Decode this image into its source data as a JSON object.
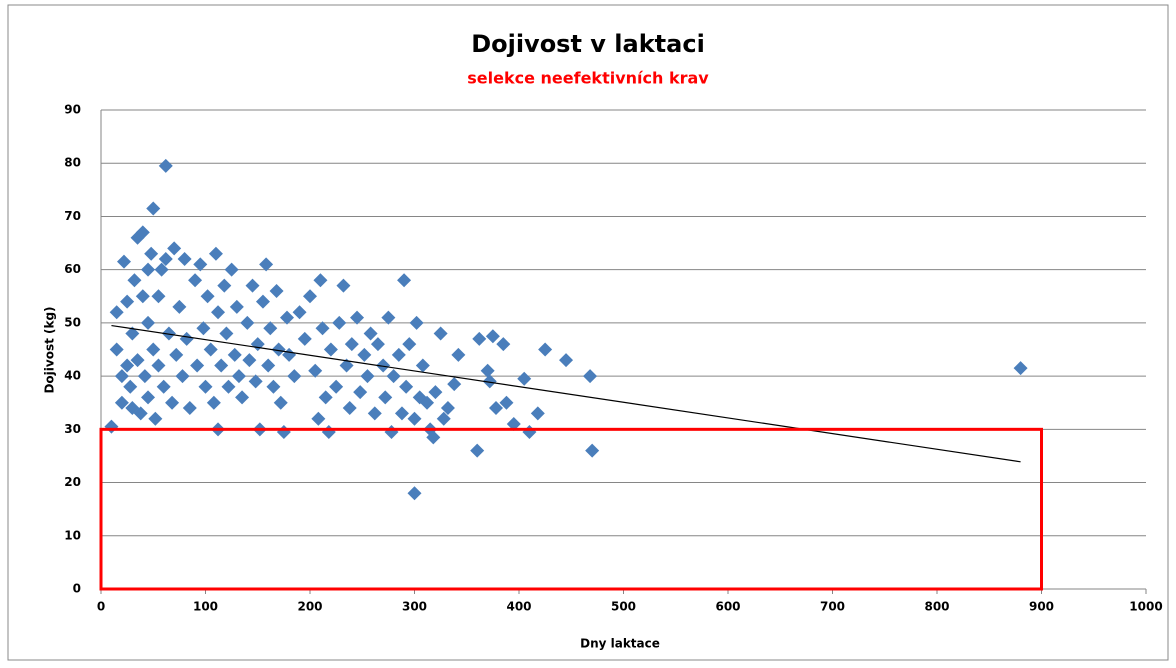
{
  "chart_data": {
    "type": "scatter",
    "title": "Dojivost v laktaci",
    "subtitle": "selekce neefektivních krav",
    "x_label": "Dny laktace",
    "y_label": "Dojivost (kg)",
    "color": "#4a7ebb",
    "x": [
      10,
      15,
      15,
      20,
      20,
      22,
      25,
      25,
      28,
      30,
      30,
      32,
      35,
      35,
      38,
      40,
      40,
      42,
      45,
      45,
      45,
      48,
      50,
      50,
      52,
      55,
      55,
      58,
      60,
      62,
      62,
      65,
      68,
      70,
      72,
      75,
      78,
      80,
      82,
      85,
      90,
      92,
      95,
      98,
      100,
      102,
      105,
      108,
      110,
      112,
      112,
      115,
      118,
      120,
      122,
      125,
      128,
      130,
      132,
      135,
      140,
      142,
      145,
      148,
      150,
      152,
      155,
      158,
      160,
      162,
      165,
      168,
      170,
      172,
      175,
      178,
      180,
      185,
      190,
      195,
      200,
      205,
      208,
      210,
      212,
      215,
      218,
      220,
      225,
      228,
      232,
      235,
      238,
      240,
      245,
      248,
      252,
      255,
      258,
      262,
      265,
      270,
      272,
      275,
      278,
      280,
      285,
      288,
      290,
      292,
      295,
      300,
      300,
      302,
      305,
      308,
      312,
      315,
      318,
      320,
      325,
      328,
      332,
      338,
      342,
      360,
      362,
      370,
      372,
      375,
      378,
      385,
      388,
      395,
      405,
      410,
      418,
      425,
      445,
      468,
      470,
      880
    ],
    "values": [
      30.5,
      52,
      45,
      40,
      35,
      61.5,
      54,
      42,
      38,
      48,
      34,
      58,
      66,
      43,
      33,
      67,
      55,
      40,
      60,
      50,
      36,
      63,
      71.5,
      45,
      32,
      55,
      42,
      60,
      38,
      79.5,
      62,
      48,
      35,
      64,
      44,
      53,
      40,
      62,
      47,
      34,
      58,
      42,
      61,
      49,
      38,
      55,
      45,
      35,
      63,
      52,
      30,
      42,
      57,
      48,
      38,
      60,
      44,
      53,
      40,
      36,
      50,
      43,
      57,
      39,
      46,
      30,
      54,
      61,
      42,
      49,
      38,
      56,
      45,
      35,
      29.5,
      51,
      44,
      40,
      52,
      47,
      55,
      41,
      32,
      58,
      49,
      36,
      29.5,
      45,
      38,
      50,
      57,
      42,
      34,
      46,
      51,
      37,
      44,
      40,
      48,
      33,
      46,
      42,
      36,
      51,
      29.5,
      40,
      44,
      33,
      58,
      38,
      46,
      18,
      32,
      50,
      36,
      42,
      35,
      30,
      28.5,
      37,
      48,
      32,
      34,
      38.5,
      44,
      26,
      47,
      41,
      39,
      47.5,
      34,
      46,
      35,
      31,
      39.5,
      29.5,
      33,
      45,
      43,
      40,
      26,
      41.5
    ],
    "trendline": {
      "x": [
        10,
        880
      ],
      "values": [
        49.5,
        23.9
      ],
      "color": "#000000"
    },
    "highlight": {
      "xlim": [
        0,
        900
      ],
      "ylim": [
        0,
        30
      ],
      "color": "#ff0000"
    },
    "xlim": [
      0,
      1000
    ],
    "xticks": [
      0,
      100,
      200,
      300,
      400,
      500,
      600,
      700,
      800,
      900,
      1000
    ],
    "ylim": [
      0,
      90
    ],
    "yticks": [
      0,
      10,
      20,
      30,
      40,
      50,
      60,
      70,
      80,
      90
    ],
    "grid": true
  }
}
